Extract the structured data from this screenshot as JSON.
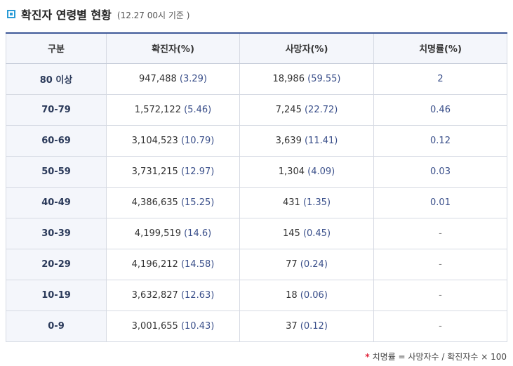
{
  "title": "확진자 연령별 현황",
  "note": "(12.27 00시 기준 )",
  "headers": [
    "구분",
    "확진자(%)",
    "사망자(%)",
    "치명률(%)"
  ],
  "rows": [
    {
      "group": "80 이상",
      "confirmed": "947,488",
      "confirmed_pct": "(3.29)",
      "deaths": "18,986",
      "deaths_pct": "(59.55)",
      "fatality": "2"
    },
    {
      "group": "70-79",
      "confirmed": "1,572,122",
      "confirmed_pct": "(5.46)",
      "deaths": "7,245",
      "deaths_pct": "(22.72)",
      "fatality": "0.46"
    },
    {
      "group": "60-69",
      "confirmed": "3,104,523",
      "confirmed_pct": "(10.79)",
      "deaths": "3,639",
      "deaths_pct": "(11.41)",
      "fatality": "0.12"
    },
    {
      "group": "50-59",
      "confirmed": "3,731,215",
      "confirmed_pct": "(12.97)",
      "deaths": "1,304",
      "deaths_pct": "(4.09)",
      "fatality": "0.03"
    },
    {
      "group": "40-49",
      "confirmed": "4,386,635",
      "confirmed_pct": "(15.25)",
      "deaths": "431",
      "deaths_pct": "(1.35)",
      "fatality": "0.01"
    },
    {
      "group": "30-39",
      "confirmed": "4,199,519",
      "confirmed_pct": "(14.6)",
      "deaths": "145",
      "deaths_pct": "(0.45)",
      "fatality": "-"
    },
    {
      "group": "20-29",
      "confirmed": "4,196,212",
      "confirmed_pct": "(14.58)",
      "deaths": "77",
      "deaths_pct": "(0.24)",
      "fatality": "-"
    },
    {
      "group": "10-19",
      "confirmed": "3,632,827",
      "confirmed_pct": "(12.63)",
      "deaths": "18",
      "deaths_pct": "(0.06)",
      "fatality": "-"
    },
    {
      "group": "0-9",
      "confirmed": "3,001,655",
      "confirmed_pct": "(10.43)",
      "deaths": "37",
      "deaths_pct": "(0.12)",
      "fatality": "-"
    }
  ],
  "footnote": {
    "marker": "*",
    "text": "치명률 = 사망자수 / 확진자수 × 100"
  },
  "colors": {
    "accent": "#2a9bd6",
    "header_border": "#3e5998",
    "header_bg": "#f4f6fb",
    "pct_text": "#3a4f8a",
    "footnote_marker": "#e0263b"
  },
  "icons": {
    "title": "square-bullet-icon"
  }
}
